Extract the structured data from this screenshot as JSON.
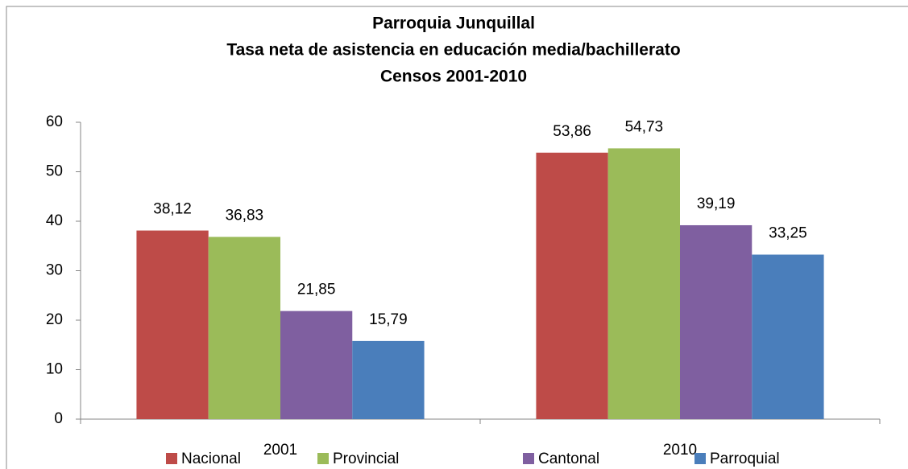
{
  "chart_data": {
    "type": "bar",
    "title": [
      "Parroquia Junquillal",
      "Tasa neta de asistencia en educación media/bachillerato",
      "Censos 2001-2010"
    ],
    "categories": [
      "2001",
      "2010"
    ],
    "series": [
      {
        "name": "Nacional",
        "color": "#be4b48",
        "values": [
          38.12,
          53.86
        ],
        "value_labels": [
          "38,12",
          "53,86"
        ]
      },
      {
        "name": "Provincial",
        "color": "#9bbb59",
        "values": [
          36.83,
          54.73
        ],
        "value_labels": [
          "36,83",
          "54,73"
        ]
      },
      {
        "name": "Cantonal",
        "color": "#7f5fa0",
        "values": [
          21.85,
          39.19
        ],
        "value_labels": [
          "21,85",
          "39,19"
        ]
      },
      {
        "name": "Parroquial",
        "color": "#4a7ebb",
        "values": [
          15.79,
          33.25
        ],
        "value_labels": [
          "15,79",
          "33,25"
        ]
      }
    ],
    "ylim": [
      0,
      60
    ],
    "yticks": [
      0,
      10,
      20,
      30,
      40,
      50,
      60
    ],
    "grid": false,
    "legend": "bottom"
  }
}
